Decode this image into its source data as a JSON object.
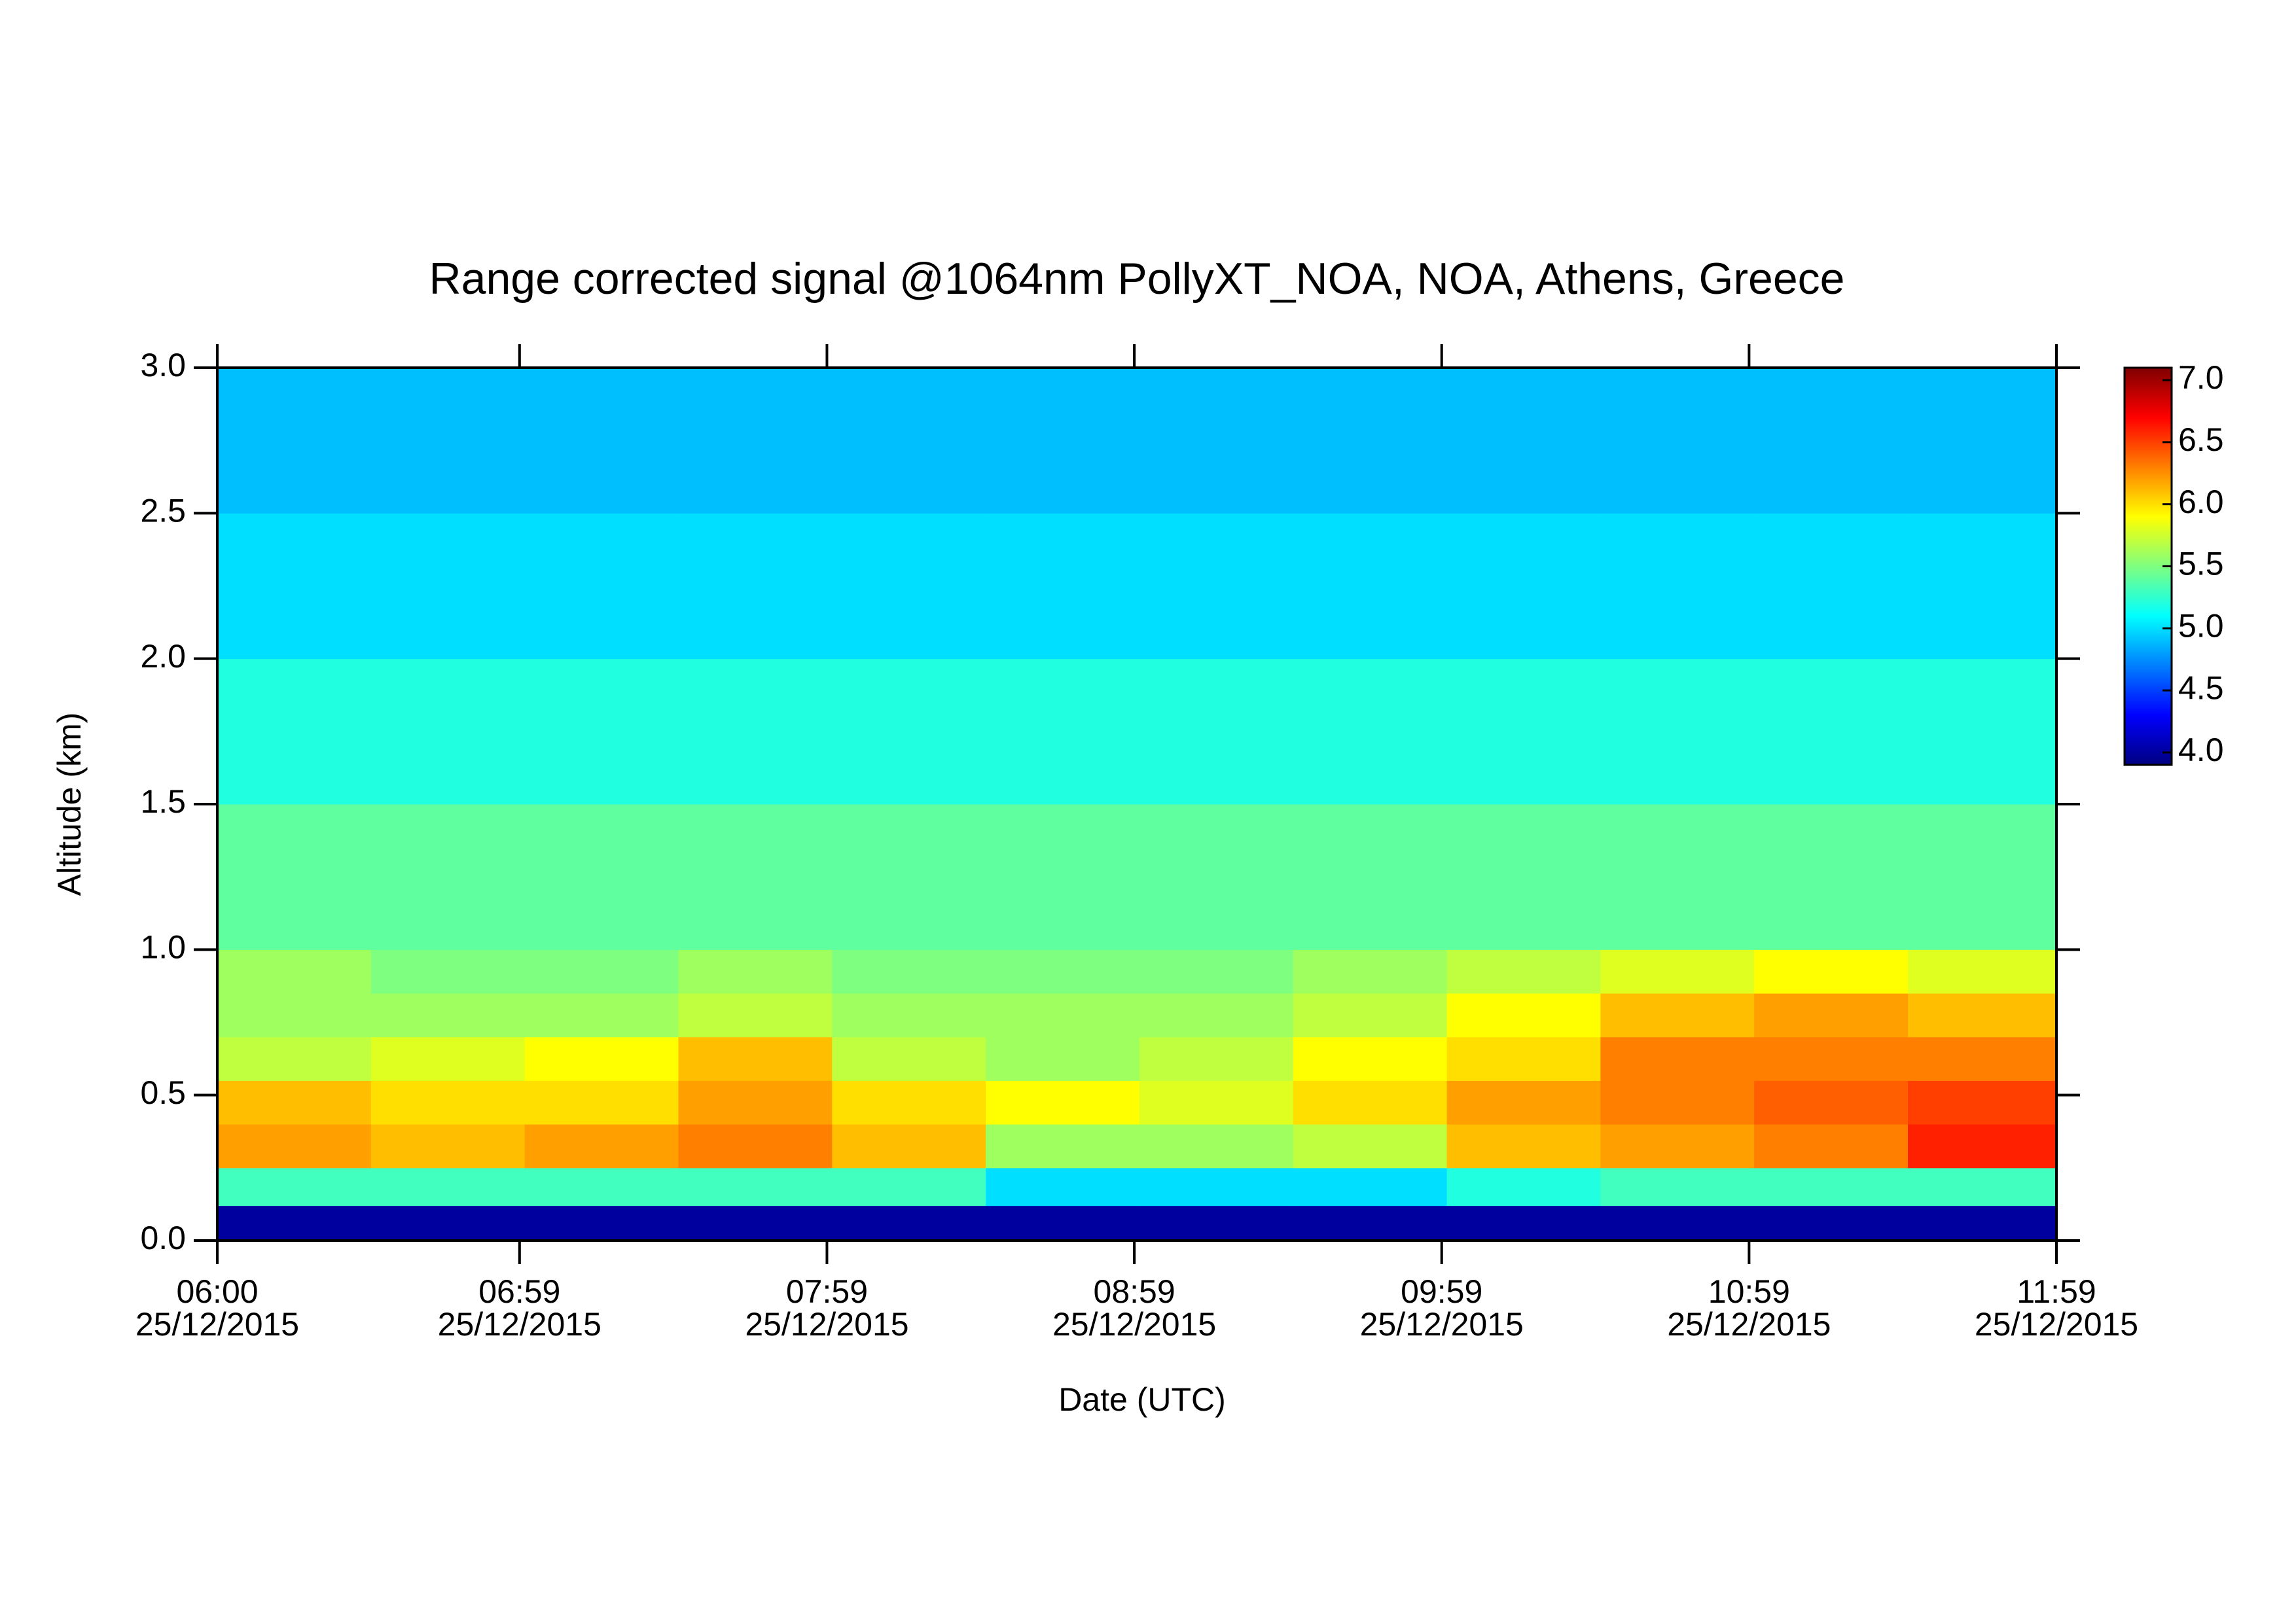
{
  "chart_data": {
    "type": "heatmap",
    "title": "Range corrected signal @1064nm  PollyXT_NOA, NOA, Athens, Greece",
    "x_label": "Date (UTC)",
    "y_label": "Altitude (km)",
    "x_bins": [
      "06:00",
      "06:30",
      "07:00",
      "07:30",
      "08:00",
      "08:30",
      "09:00",
      "09:30",
      "10:00",
      "10:30",
      "11:00",
      "11:30",
      "11:59"
    ],
    "y_bins": [
      0,
      0.12,
      0.25,
      0.4,
      0.55,
      0.7,
      0.85,
      1.0,
      1.5,
      2.0,
      2.5,
      3.0
    ],
    "values": [
      [
        4.0,
        4.0,
        4.0,
        4.0,
        4.0,
        4.0,
        4.0,
        4.0,
        4.0,
        4.0,
        4.0,
        4.0
      ],
      [
        5.3,
        5.3,
        5.3,
        5.3,
        5.3,
        5.0,
        5.0,
        5.0,
        5.2,
        5.3,
        5.3,
        5.3
      ],
      [
        6.2,
        6.1,
        6.2,
        6.3,
        6.1,
        5.6,
        5.6,
        5.7,
        6.1,
        6.2,
        6.3,
        6.6
      ],
      [
        6.1,
        6.0,
        6.0,
        6.2,
        6.0,
        5.9,
        5.8,
        6.0,
        6.2,
        6.3,
        6.4,
        6.5
      ],
      [
        5.7,
        5.8,
        5.9,
        6.1,
        5.7,
        5.6,
        5.7,
        5.9,
        6.0,
        6.3,
        6.3,
        6.3
      ],
      [
        5.6,
        5.6,
        5.6,
        5.7,
        5.6,
        5.6,
        5.6,
        5.7,
        5.9,
        6.1,
        6.2,
        6.1
      ],
      [
        5.6,
        5.5,
        5.5,
        5.6,
        5.5,
        5.5,
        5.5,
        5.6,
        5.7,
        5.8,
        5.9,
        5.8
      ],
      [
        5.4,
        5.4,
        5.4,
        5.4,
        5.4,
        5.4,
        5.4,
        5.4,
        5.4,
        5.4,
        5.4,
        5.4
      ],
      [
        5.2,
        5.2,
        5.2,
        5.2,
        5.2,
        5.2,
        5.2,
        5.2,
        5.2,
        5.2,
        5.2,
        5.2
      ],
      [
        5.0,
        5.0,
        5.0,
        5.0,
        5.0,
        5.0,
        5.0,
        5.0,
        5.0,
        5.0,
        5.0,
        5.0
      ],
      [
        4.9,
        4.9,
        4.9,
        4.9,
        4.9,
        4.9,
        4.9,
        4.9,
        4.9,
        4.9,
        4.9,
        4.9
      ]
    ],
    "xlim": [
      "06:00",
      "11:59"
    ],
    "xticks": [
      {
        "value": "06:00",
        "label": [
          "06:00",
          "25/12/2015"
        ]
      },
      {
        "value": "06:59",
        "label": [
          "06:59",
          "25/12/2015"
        ]
      },
      {
        "value": "07:59",
        "label": [
          "07:59",
          "25/12/2015"
        ]
      },
      {
        "value": "08:59",
        "label": [
          "08:59",
          "25/12/2015"
        ]
      },
      {
        "value": "09:59",
        "label": [
          "09:59",
          "25/12/2015"
        ]
      },
      {
        "value": "10:59",
        "label": [
          "10:59",
          "25/12/2015"
        ]
      },
      {
        "value": "11:59",
        "label": [
          "11:59",
          "25/12/2015"
        ]
      }
    ],
    "ylim": [
      0,
      3.0
    ],
    "yticks": [
      {
        "value": 0,
        "label": "0.0"
      },
      0.5,
      {
        "value": 1,
        "label": "1.0"
      },
      1.5,
      {
        "value": 2,
        "label": "2.0"
      },
      2.5,
      {
        "value": 3,
        "label": "3.0"
      }
    ],
    "clim": [
      3.9,
      7.1
    ],
    "cticks": [
      {
        "value": 4,
        "label": "4.0"
      },
      4.5,
      {
        "value": 5,
        "label": "5.0"
      },
      5.5,
      {
        "value": 6,
        "label": "6.0"
      },
      6.5,
      {
        "value": 7,
        "label": "7.0"
      }
    ],
    "colormap": [
      "#00007f",
      "#0000ff",
      "#007fff",
      "#00ffff",
      "#7fff7f",
      "#ffff00",
      "#ff7f00",
      "#ff0000",
      "#7f0000"
    ]
  }
}
